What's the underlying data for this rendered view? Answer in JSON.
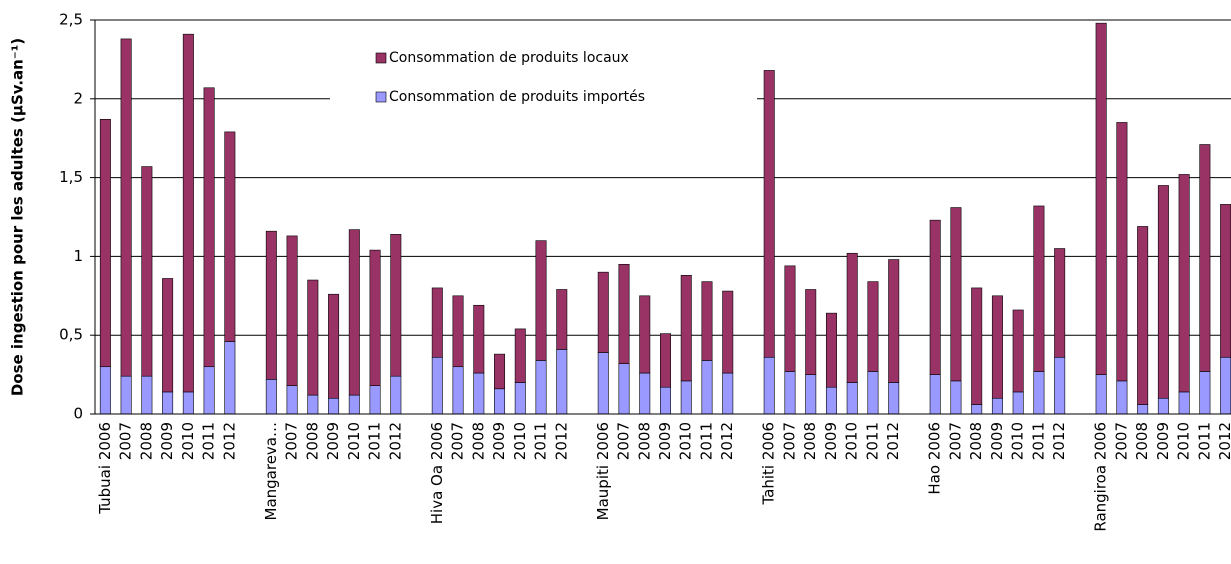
{
  "chart_data": {
    "type": "bar",
    "stacked": true,
    "y_label": "Dose ingestion pour les adultes (µSv.an⁻¹)",
    "categories": [
      "Tubuai 2006",
      "2007",
      "2008",
      "2009",
      "2010",
      "2011",
      "2012",
      null,
      "Mangareva…",
      "2007",
      "2008",
      "2009",
      "2010",
      "2011",
      "2012",
      null,
      "Hiva Oa 2006",
      "2007",
      "2008",
      "2009",
      "2010",
      "2011",
      "2012",
      null,
      "Maupiti 2006",
      "2007",
      "2008",
      "2009",
      "2010",
      "2011",
      "2012",
      null,
      "Tahiti 2006",
      "2007",
      "2008",
      "2009",
      "2010",
      "2011",
      "2012",
      null,
      "Hao 2006",
      "2007",
      "2008",
      "2009",
      "2010",
      "2011",
      "2012",
      null,
      "Rangiroa 2006",
      "2007",
      "2008",
      "2009",
      "2010",
      "2011",
      "2012"
    ],
    "series": [
      {
        "name": "Consommation de produits importés",
        "color": "#9999ff",
        "values": [
          0.3,
          0.24,
          0.24,
          0.14,
          0.14,
          0.3,
          0.46,
          null,
          0.22,
          0.18,
          0.12,
          0.1,
          0.12,
          0.18,
          0.24,
          null,
          0.36,
          0.3,
          0.26,
          0.16,
          0.2,
          0.34,
          0.41,
          null,
          0.39,
          0.32,
          0.26,
          0.17,
          0.21,
          0.34,
          0.26,
          null,
          0.36,
          0.27,
          0.25,
          0.17,
          0.2,
          0.27,
          0.2,
          null,
          0.25,
          0.21,
          0.06,
          0.1,
          0.14,
          0.27,
          0.36,
          null,
          0.25,
          0.21,
          0.06,
          0.1,
          0.14,
          0.27,
          0.36
        ]
      },
      {
        "name": "Consommation de produits locaux",
        "color": "#993366",
        "values": [
          1.57,
          2.14,
          1.33,
          0.72,
          2.27,
          1.77,
          1.33,
          null,
          0.94,
          0.95,
          0.73,
          0.66,
          1.05,
          0.86,
          0.9,
          null,
          0.44,
          0.45,
          0.43,
          0.22,
          0.34,
          0.76,
          0.38,
          null,
          0.51,
          0.63,
          0.49,
          0.34,
          0.67,
          0.5,
          0.52,
          null,
          1.82,
          0.67,
          0.54,
          0.47,
          0.82,
          0.57,
          0.78,
          null,
          0.98,
          1.1,
          0.74,
          0.65,
          0.52,
          1.05,
          0.69,
          null,
          2.23,
          1.64,
          1.13,
          1.35,
          1.38,
          1.44,
          0.97
        ]
      }
    ],
    "ylim": [
      0,
      2.5
    ],
    "yticks": [
      0,
      {
        "value": 0.5,
        "label": "0,5"
      },
      1,
      {
        "value": 1.5,
        "label": "1,5"
      },
      2,
      {
        "value": 2.5,
        "label": "2,5"
      }
    ],
    "grid": true
  }
}
